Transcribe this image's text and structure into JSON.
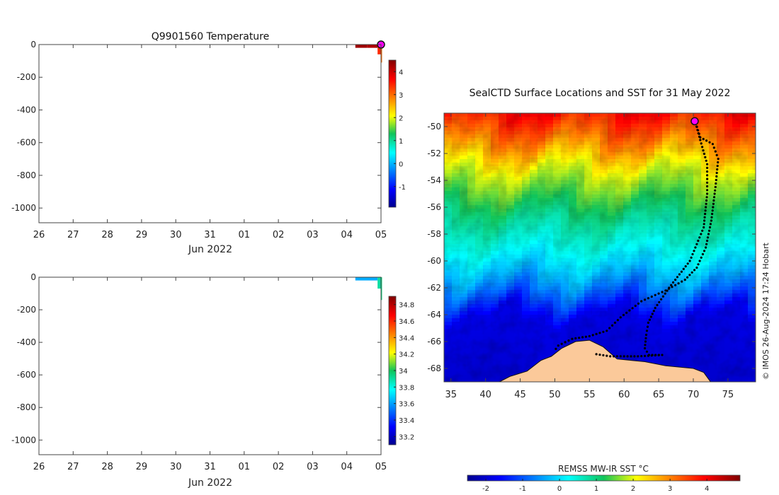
{
  "chart_data": [
    {
      "type": "heatmap",
      "title": "Q9901560  Temperature",
      "xlabel": "Jun 2022",
      "ylabel": "",
      "x_ticks": [
        "26",
        "27",
        "28",
        "29",
        "30",
        "31",
        "01",
        "02",
        "03",
        "04",
        "05"
      ],
      "x_tick_values": [
        26,
        27,
        28,
        29,
        30,
        31,
        32,
        33,
        34,
        35,
        36
      ],
      "xlim": [
        26,
        36
      ],
      "y_ticks": [
        "0",
        "-200",
        "-400",
        "-600",
        "-800",
        "-1000"
      ],
      "y_tick_values": [
        0,
        -200,
        -400,
        -600,
        -800,
        -1000
      ],
      "ylim": [
        -1090,
        0
      ],
      "colorbar_ticks": [
        "-1",
        "0",
        "1",
        "2",
        "3",
        "4"
      ],
      "colorbar_values": [
        -1,
        0,
        1,
        2,
        3,
        4
      ],
      "color_range": [
        -1.9,
        4.5
      ],
      "profiles": [
        {
          "x_start": 35.25,
          "x_end": 35.6,
          "depth": 20,
          "value": 4.3
        },
        {
          "x_start": 35.6,
          "x_end": 35.9,
          "depth": 20,
          "value": 4.2
        },
        {
          "x_start": 35.9,
          "x_end": 36.0,
          "depth": 60,
          "value": 3.4
        },
        {
          "x_start": 36.0,
          "x_end": 36.03,
          "depth": 110,
          "value": 3.0
        }
      ],
      "latest_position_marker": {
        "x": 36.0,
        "y": 0
      }
    },
    {
      "type": "heatmap",
      "title": "",
      "xlabel": "Jun 2022",
      "ylabel": "",
      "x_ticks": [
        "26",
        "27",
        "28",
        "29",
        "30",
        "31",
        "01",
        "02",
        "03",
        "04",
        "05"
      ],
      "x_tick_values": [
        26,
        27,
        28,
        29,
        30,
        31,
        32,
        33,
        34,
        35,
        36
      ],
      "xlim": [
        26,
        36
      ],
      "y_ticks": [
        "0",
        "-200",
        "-400",
        "-600",
        "-800",
        "-1000"
      ],
      "y_tick_values": [
        0,
        -200,
        -400,
        -600,
        -800,
        -1000
      ],
      "ylim": [
        -1090,
        0
      ],
      "colorbar_ticks": [
        "33.2",
        "33.4",
        "33.6",
        "33.8",
        "34",
        "34.2",
        "34.4",
        "34.6",
        "34.8"
      ],
      "colorbar_values": [
        33.2,
        33.4,
        33.6,
        33.8,
        34.0,
        34.2,
        34.4,
        34.6,
        34.8
      ],
      "color_range": [
        33.1,
        34.9
      ],
      "profiles": [
        {
          "x_start": 35.25,
          "x_end": 35.9,
          "depth": 20,
          "value": 33.62
        },
        {
          "x_start": 35.9,
          "x_end": 36.0,
          "depth": 70,
          "value": 33.9
        },
        {
          "x_start": 36.0,
          "x_end": 36.03,
          "depth": 140,
          "value": 33.95
        }
      ]
    },
    {
      "type": "heatmap",
      "title": "SealCTD Surface Locations and SST for 31 May 2022",
      "xlabel": "",
      "ylabel": "",
      "x_ticks": [
        "35",
        "40",
        "45",
        "50",
        "55",
        "60",
        "65",
        "70",
        "75"
      ],
      "x_tick_values": [
        35,
        40,
        45,
        50,
        55,
        60,
        65,
        70,
        75
      ],
      "xlim": [
        34,
        79
      ],
      "y_ticks": [
        "-50",
        "-52",
        "-54",
        "-56",
        "-58",
        "-60",
        "-62",
        "-64",
        "-66",
        "-68"
      ],
      "y_tick_values": [
        -50,
        -52,
        -54,
        -56,
        -58,
        -60,
        -62,
        -64,
        -66,
        -68
      ],
      "ylim": [
        -69,
        -49
      ],
      "colorbar_label": "REMSS MW-IR SST °C",
      "colorbar_ticks": [
        "-2",
        "-1",
        "0",
        "1",
        "2",
        "3",
        "4"
      ],
      "colorbar_values": [
        -2,
        -1,
        0,
        1,
        2,
        3,
        4
      ],
      "color_range": [
        -2.5,
        4.9
      ],
      "sst_zonal_profile": [
        {
          "lat": -49.0,
          "sst": 3.8
        },
        {
          "lat": -51.0,
          "sst": 3.0
        },
        {
          "lat": -53.0,
          "sst": 2.0
        },
        {
          "lat": -55.0,
          "sst": 1.4
        },
        {
          "lat": -57.0,
          "sst": 0.8
        },
        {
          "lat": -59.0,
          "sst": 0.3
        },
        {
          "lat": -61.0,
          "sst": -0.3
        },
        {
          "lat": -62.5,
          "sst": -1.0
        },
        {
          "lat": -64.0,
          "sst": -1.8
        },
        {
          "lat": -69.0,
          "sst": -2.0
        }
      ],
      "coastline": [
        {
          "lon": 34.0,
          "lat": -69.0
        },
        {
          "lon": 42.0,
          "lat": -69.0
        },
        {
          "lon": 43.5,
          "lat": -68.6
        },
        {
          "lon": 46.0,
          "lat": -68.2
        },
        {
          "lon": 48.0,
          "lat": -67.4
        },
        {
          "lon": 49.5,
          "lat": -67.1
        },
        {
          "lon": 51.0,
          "lat": -66.5
        },
        {
          "lon": 53.0,
          "lat": -66.0
        },
        {
          "lon": 55.0,
          "lat": -65.9
        },
        {
          "lon": 57.0,
          "lat": -66.4
        },
        {
          "lon": 59.0,
          "lat": -67.3
        },
        {
          "lon": 61.0,
          "lat": -67.4
        },
        {
          "lon": 63.0,
          "lat": -67.5
        },
        {
          "lon": 66.0,
          "lat": -67.8
        },
        {
          "lon": 68.0,
          "lat": -67.9
        },
        {
          "lon": 70.0,
          "lat": -68.0
        },
        {
          "lon": 71.5,
          "lat": -68.3
        },
        {
          "lon": 72.5,
          "lat": -69.0
        }
      ],
      "tracks": [
        [
          {
            "lon": 70.2,
            "lat": -49.5
          },
          {
            "lon": 71.0,
            "lat": -50.8
          },
          {
            "lon": 72.8,
            "lat": -51.3
          },
          {
            "lon": 73.6,
            "lat": -52.4
          },
          {
            "lon": 73.2,
            "lat": -54.5
          },
          {
            "lon": 72.6,
            "lat": -57.0
          },
          {
            "lon": 71.8,
            "lat": -59.0
          },
          {
            "lon": 70.5,
            "lat": -60.5
          },
          {
            "lon": 68.8,
            "lat": -61.4
          },
          {
            "lon": 66.0,
            "lat": -62.2
          },
          {
            "lon": 62.5,
            "lat": -63.0
          },
          {
            "lon": 59.5,
            "lat": -64.2
          },
          {
            "lon": 57.5,
            "lat": -65.2
          },
          {
            "lon": 55.0,
            "lat": -65.6
          },
          {
            "lon": 52.5,
            "lat": -65.8
          },
          {
            "lon": 50.5,
            "lat": -66.3
          },
          {
            "lon": 49.8,
            "lat": -66.8
          }
        ],
        [
          {
            "lon": 70.2,
            "lat": -49.5
          },
          {
            "lon": 71.0,
            "lat": -51.0
          },
          {
            "lon": 72.0,
            "lat": -52.8
          },
          {
            "lon": 72.0,
            "lat": -55.0
          },
          {
            "lon": 71.5,
            "lat": -57.5
          },
          {
            "lon": 69.5,
            "lat": -60.0
          },
          {
            "lon": 66.5,
            "lat": -62.0
          },
          {
            "lon": 64.5,
            "lat": -63.5
          },
          {
            "lon": 63.5,
            "lat": -64.6
          },
          {
            "lon": 63.2,
            "lat": -65.5
          },
          {
            "lon": 63.0,
            "lat": -66.5
          },
          {
            "lon": 63.6,
            "lat": -67.0
          },
          {
            "lon": 65.5,
            "lat": -67.0
          },
          {
            "lon": 62.0,
            "lat": -67.1
          },
          {
            "lon": 58.0,
            "lat": -67.1
          },
          {
            "lon": 55.5,
            "lat": -66.9
          }
        ]
      ],
      "current_position": {
        "lon": 70.2,
        "lat": -49.6
      }
    }
  ],
  "credit": "© IMOS 26-Aug-2024 17:24 Hobart"
}
